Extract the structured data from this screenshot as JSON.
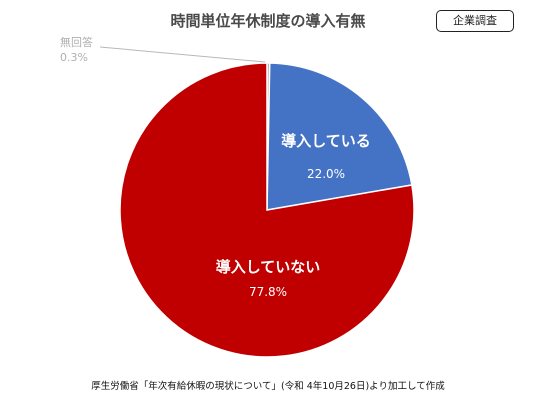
{
  "header": {
    "title": "時間単位年休制度の導入有無",
    "badge": "企業調査"
  },
  "chart_data": {
    "type": "pie",
    "title": "時間単位年休制度の導入有無",
    "slices": [
      {
        "label": "無回答",
        "value": 0.3,
        "value_label": "0.3%",
        "color": "#b0b0b0"
      },
      {
        "label": "導入している",
        "value": 22.0,
        "value_label": "22.0%",
        "color": "#4472c4"
      },
      {
        "label": "導入していない",
        "value": 77.8,
        "value_label": "77.8%",
        "color": "#c00000"
      }
    ],
    "start": "top, clockwise"
  },
  "footer": {
    "source": "厚生労働省「年次有給休暇の現状について」(令和 4年10月26日)より加工して作成"
  }
}
